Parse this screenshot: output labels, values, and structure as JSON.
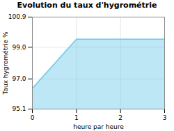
{
  "chart_data": {
    "type": "area",
    "title": "Evolution du taux d'hygrométrie",
    "xlabel": "heure par heure",
    "ylabel": "Taux hygrométrie %",
    "x": [
      0,
      1,
      2,
      3
    ],
    "values": [
      96.4,
      99.5,
      99.5,
      99.5
    ],
    "color": "#6ecae8",
    "xlim": [
      0,
      3
    ],
    "ylim": [
      95.1,
      100.9
    ],
    "xticks": [
      0,
      1,
      2,
      3
    ],
    "yticks": [
      95.1,
      {
        "value": 97.0,
        "label": "97.0"
      },
      {
        "value": 99.0,
        "label": "99.0"
      },
      100.9
    ],
    "grid": true
  }
}
